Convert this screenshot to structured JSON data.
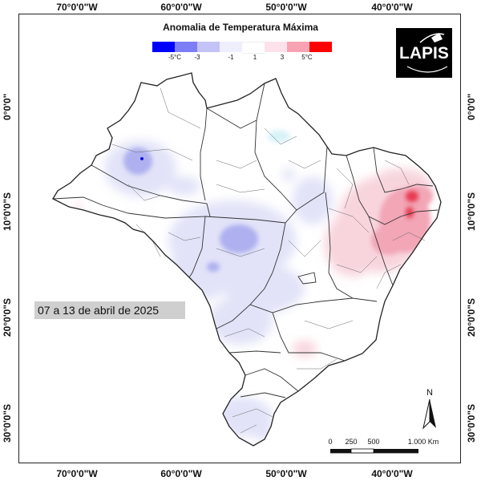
{
  "map": {
    "legend": {
      "title": "Anomalia de Temperatura Máxima",
      "labels": [
        "-5°C",
        "-3",
        "-1",
        "1",
        "3",
        "5°C"
      ],
      "colors": [
        "#0000ff",
        "#7d7df5",
        "#c3c3f7",
        "#eeeefd",
        "#ffffff",
        "#fde2ec",
        "#f7a3b4",
        "#ff0000"
      ]
    },
    "longitude_ticks": [
      "70°0'0\"W",
      "60°0'0\"W",
      "50°0'0\"W",
      "40°0'0\"W"
    ],
    "latitude_ticks": [
      "0°0'0\"",
      "10°0'0\"S",
      "20°0'0\"S",
      "30°0'0\"S"
    ],
    "period": "07 a 13 de abril de 2025",
    "logo_text": "LAPIS",
    "north_label": "N",
    "scale_labels": [
      "0",
      "250",
      "500",
      "1.000 Km"
    ],
    "colors": {
      "land": "#ffffff",
      "border": "#333333",
      "cool_light": "#e1e2f8",
      "cool_mid": "#aeb0ef",
      "warm_light": "#f8d4dd",
      "warm_mid": "#f2a6b6",
      "warm_strong": "#e8384e"
    }
  }
}
